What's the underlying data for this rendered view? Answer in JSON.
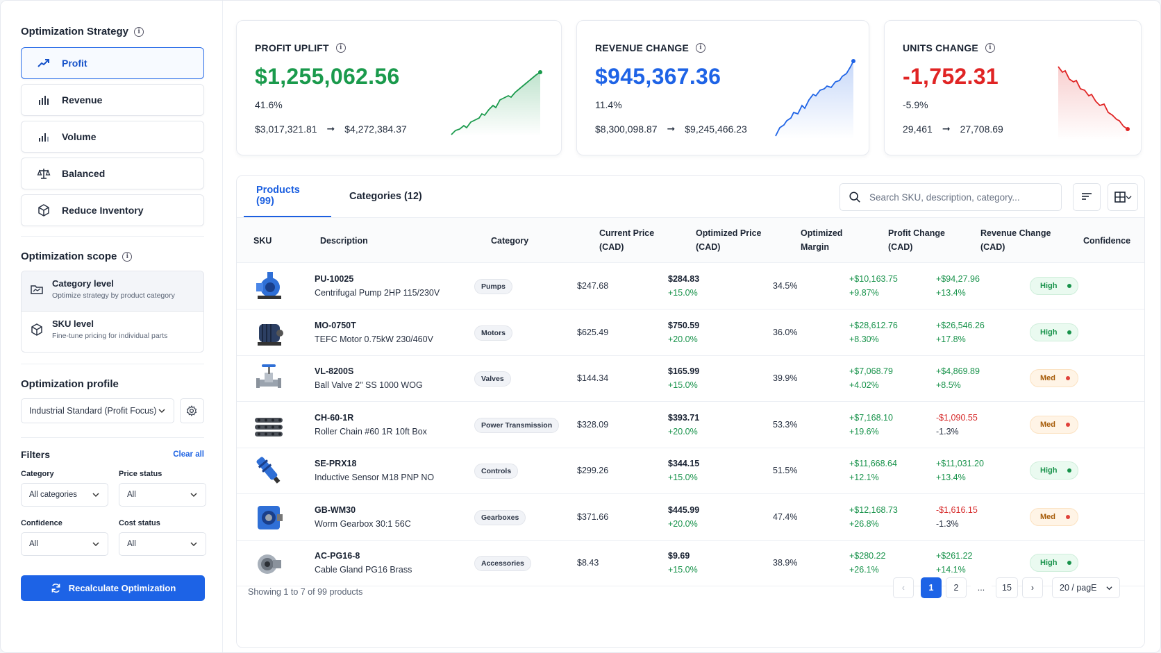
{
  "sidebar": {
    "strategy_title": "Optimization Strategy",
    "strategies": [
      {
        "label": "Profit",
        "icon": "trend-up-icon",
        "active": true
      },
      {
        "label": "Revenue",
        "icon": "bar-chart-icon",
        "active": false
      },
      {
        "label": "Volume",
        "icon": "volume-bars-icon",
        "active": false
      },
      {
        "label": "Balanced",
        "icon": "scale-icon",
        "active": false
      },
      {
        "label": "Reduce Inventory",
        "icon": "box-icon",
        "active": false
      }
    ],
    "scope_title": "Optimization scope",
    "scope": [
      {
        "title": "Category level",
        "subtitle": "Optimize strategy by product category",
        "selected": true
      },
      {
        "title": "SKU level",
        "subtitle": "Fine-tune pricing for individual parts",
        "selected": false
      }
    ],
    "profile_title": "Optimization profile",
    "profile_value": "Industrial Standard (Profit Focus)",
    "filters_title": "Filters",
    "clear_all": "Clear all",
    "filters": {
      "category": {
        "label": "Category",
        "value": "All categories"
      },
      "price_status": {
        "label": "Price status",
        "value": "All"
      },
      "confidence": {
        "label": "Confidence",
        "value": "All"
      },
      "cost_status": {
        "label": "Cost status",
        "value": "All"
      }
    },
    "recalc_label": "Recalculate Optimization"
  },
  "kpis": {
    "profit": {
      "label": "PROFIT UPLIFT",
      "value": "$1,255,062.56",
      "pct": "41.6%",
      "from": "$3,017,321.81",
      "to": "$4,272,384.37",
      "color": "#1a9a4c"
    },
    "revenue": {
      "label": "REVENUE CHANGE",
      "value": "$945,367.36",
      "pct": "11.4%",
      "from": "$8,300,098.87",
      "to": "$9,245,466.23",
      "color": "#1e63e6"
    },
    "units": {
      "label": "UNITS CHANGE",
      "value": "-1,752.31",
      "pct": "-5.9%",
      "from": "29,461",
      "to": "27,708.69",
      "color": "#e02424"
    }
  },
  "table": {
    "tabs": [
      "Products (99)",
      "Categories (12)"
    ],
    "search_placeholder": "Search SKU, description, category...",
    "headers": {
      "sku": "SKU",
      "description": "Description",
      "category": "Category",
      "current_price_1": "Current Price",
      "current_price_2": "(CAD)",
      "optimized_price_1": "Optimized Price",
      "optimized_price_2": "(CAD)",
      "margin_1": "Optimized",
      "margin_2": "Margin",
      "profit_1": "Profit Change",
      "profit_2": "(CAD)",
      "revenue_1": "Revenue Change",
      "revenue_2": "(CAD)",
      "confidence": "Confidence"
    },
    "rows": [
      {
        "sku": "PU-10025",
        "desc": "Centrifugal Pump 2HP 115/230V",
        "category": "Pumps",
        "current": "$247.68",
        "opt_price": "$284.83",
        "opt_pct": "+15.0%",
        "margin": "34.5%",
        "profit": "+$10,163.75",
        "profit_pct": "+9.87%",
        "revenue": "+$94,27.96",
        "revenue_pct": "+13.4%",
        "confidence": "High",
        "thumb": "pump-icon"
      },
      {
        "sku": "MO-0750T",
        "desc": "TEFC Motor 0.75kW 230/460V",
        "category": "Motors",
        "current": "$625.49",
        "opt_price": "$750.59",
        "opt_pct": "+20.0%",
        "margin": "36.0%",
        "profit": "+$28,612.76",
        "profit_pct": "+8.30%",
        "revenue": "+$26,546.26",
        "revenue_pct": "+17.8%",
        "confidence": "High",
        "thumb": "motor-icon"
      },
      {
        "sku": "VL-8200S",
        "desc": "Ball Valve 2\" SS 1000 WOG",
        "category": "Valves",
        "current": "$144.34",
        "opt_price": "$165.99",
        "opt_pct": "+15.0%",
        "margin": "39.9%",
        "profit": "+$7,068.79",
        "profit_pct": "+4.02%",
        "revenue": "+$4,869.89",
        "revenue_pct": "+8.5%",
        "confidence": "Med",
        "thumb": "valve-icon"
      },
      {
        "sku": "CH-60-1R",
        "desc": "Roller Chain #60 1R 10ft Box",
        "category": "Power Transmission",
        "current": "$328.09",
        "opt_price": "$393.71",
        "opt_pct": "+20.0%",
        "margin": "53.3%",
        "profit": "+$7,168.10",
        "profit_pct": "+19.6%",
        "revenue": "-$1,090.55",
        "revenue_pct": "-1.3%",
        "confidence": "Med",
        "thumb": "chain-icon"
      },
      {
        "sku": "SE-PRX18",
        "desc": "Inductive Sensor M18 PNP NO",
        "category": "Controls",
        "current": "$299.26",
        "opt_price": "$344.15",
        "opt_pct": "+15.0%",
        "margin": "51.5%",
        "profit": "+$11,668.64",
        "profit_pct": "+12.1%",
        "revenue": "+$11,031.20",
        "revenue_pct": "+13.4%",
        "confidence": "High",
        "thumb": "sensor-icon"
      },
      {
        "sku": "GB-WM30",
        "desc": "Worm Gearbox 30:1 56C",
        "category": "Gearboxes",
        "current": "$371.66",
        "opt_price": "$445.99",
        "opt_pct": "+20.0%",
        "margin": "47.4%",
        "profit": "+$12,168.73",
        "profit_pct": "+26.8%",
        "revenue": "-$1,616.15",
        "revenue_pct": "-1.3%",
        "confidence": "Med",
        "thumb": "gearbox-icon"
      },
      {
        "sku": "AC-PG16-8",
        "desc": "Cable Gland PG16 Brass",
        "category": "Accessories",
        "current": "$8.43",
        "opt_price": "$9.69",
        "opt_pct": "+15.0%",
        "margin": "38.9%",
        "profit": "+$280.22",
        "profit_pct": "+26.1%",
        "revenue": "+$261.22",
        "revenue_pct": "+14.1%",
        "confidence": "High",
        "thumb": "cable-gland-icon"
      }
    ],
    "footer": "Showing 1 to 7 of 99 products",
    "pagination": {
      "pages": [
        "1",
        "2",
        "...",
        "15"
      ],
      "current": "1",
      "per_page": "20 / pagE"
    }
  }
}
